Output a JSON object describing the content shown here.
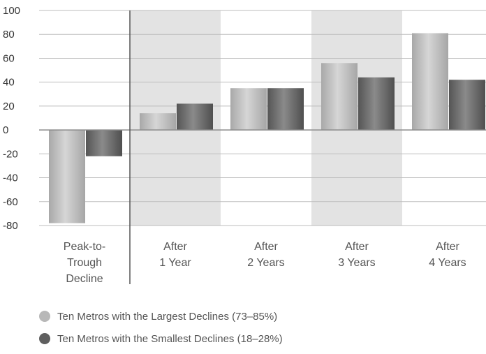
{
  "chart_data": {
    "type": "bar",
    "categories": [
      [
        "Peak-to-",
        "Trough",
        "Decline"
      ],
      [
        "After",
        "1 Year"
      ],
      [
        "After",
        "2 Years"
      ],
      [
        "After",
        "3 Years"
      ],
      [
        "After",
        "4 Years"
      ]
    ],
    "series": [
      {
        "name": "Ten Metros with the Largest Declines (73–85%)",
        "values": [
          -78,
          14,
          35,
          56,
          81
        ],
        "color": "#b8b8b8"
      },
      {
        "name": "Ten Metros with the Smallest Declines (18–28%)",
        "values": [
          -22,
          22,
          35,
          44,
          42
        ],
        "color": "#6e6e6e"
      }
    ],
    "ylim": [
      -80,
      100
    ],
    "yticks": [
      100,
      80,
      60,
      40,
      20,
      0,
      -20,
      -40,
      -60,
      -80
    ],
    "shaded_categories": [
      1,
      3
    ],
    "grid": true,
    "legend_position": "bottom-left"
  }
}
